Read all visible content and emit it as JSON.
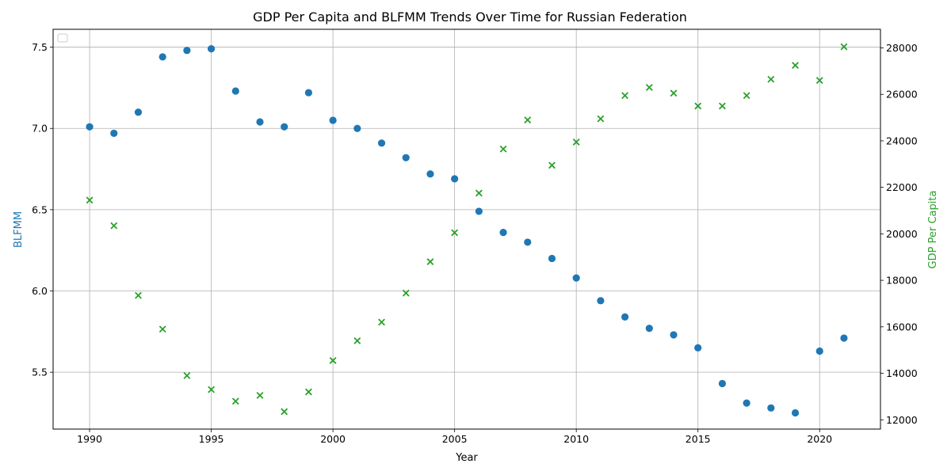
{
  "chart_data": {
    "type": "scatter",
    "title": "GDP Per Capita and BLFMM Trends Over Time for Russian Federation",
    "xlabel": "Year",
    "ylabel_left": "BLFMM",
    "ylabel_right": "GDP Per Capita",
    "xlim": [
      1988.5,
      2022.5
    ],
    "ylim_left": [
      5.15,
      7.61
    ],
    "ylim_right": [
      11600,
      28800
    ],
    "x_ticks": [
      1990,
      1995,
      2000,
      2005,
      2010,
      2015,
      2020
    ],
    "y_left_ticks": [
      "5.5",
      "6.0",
      "6.5",
      "7.0",
      "7.5"
    ],
    "y_right_ticks": [
      "12000",
      "14000",
      "16000",
      "18000",
      "20000",
      "22000",
      "24000",
      "26000",
      "28000"
    ],
    "grid": true,
    "legend": "top-left",
    "colors": {
      "blfmm": "#1f77b4",
      "gdp": "#2ca02c"
    },
    "series": [
      {
        "axis": "left",
        "marker": "circle",
        "color": "#1f77b4",
        "x": [
          1990,
          1991,
          1992,
          1993,
          1994,
          1995,
          1996,
          1997,
          1998,
          1999,
          2000,
          2001,
          2002,
          2003,
          2004,
          2005,
          2006,
          2007,
          2008,
          2009,
          2010,
          2011,
          2012,
          2013,
          2014,
          2015,
          2016,
          2017,
          2018,
          2019,
          2020,
          2021
        ],
        "y": [
          7.01,
          6.97,
          7.1,
          7.44,
          7.48,
          7.49,
          7.23,
          7.04,
          7.01,
          7.22,
          7.05,
          7.0,
          6.91,
          6.82,
          6.72,
          6.69,
          6.49,
          6.36,
          6.3,
          6.2,
          6.08,
          5.94,
          5.84,
          5.77,
          5.73,
          5.65,
          5.43,
          5.31,
          5.28,
          5.25,
          5.63,
          5.71
        ]
      },
      {
        "axis": "right",
        "marker": "x",
        "color": "#2ca02c",
        "x": [
          1990,
          1991,
          1992,
          1993,
          1994,
          1995,
          1996,
          1997,
          1998,
          1999,
          2000,
          2001,
          2002,
          2003,
          2004,
          2005,
          2006,
          2007,
          2008,
          2009,
          2010,
          2011,
          2012,
          2013,
          2014,
          2015,
          2016,
          2017,
          2018,
          2019,
          2020,
          2021
        ],
        "y": [
          21450,
          20350,
          17350,
          15900,
          13900,
          13300,
          12800,
          13050,
          12350,
          13200,
          14550,
          15400,
          16200,
          17450,
          18800,
          20050,
          21750,
          23650,
          24900,
          22950,
          23950,
          24950,
          25950,
          26300,
          26050,
          25500,
          25500,
          25950,
          26650,
          27250,
          26600,
          28050
        ]
      }
    ]
  }
}
